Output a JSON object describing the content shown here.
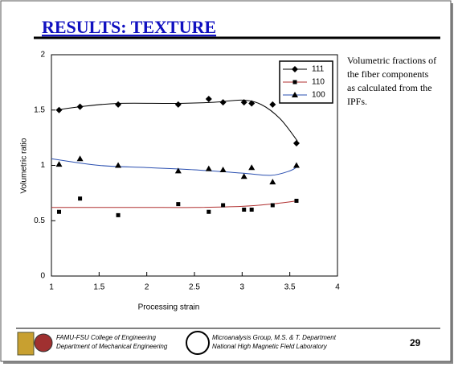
{
  "slide": {
    "title": "RESULTS: TEXTURE",
    "note": [
      "Volumetric fractions of",
      "the fiber components",
      "as calculated from the",
      "IPFs."
    ],
    "footer_left": [
      "FAMU-FSU College of Engineering",
      "Department of Mechanical Engineering"
    ],
    "footer_mid": [
      "Microanalysis Group, M.S. & T. Department",
      "National High Magnetic Field Laboratory"
    ],
    "page": "29"
  },
  "chart_data": {
    "type": "scatter",
    "x_label": "Processing strain",
    "y_label": "Volumetric ratio",
    "xlim": [
      1,
      4
    ],
    "xticks": [
      1,
      1.5,
      2,
      2.5,
      3,
      3.5,
      4
    ],
    "ylim": [
      0,
      2
    ],
    "yticks": [
      0,
      0.5,
      1,
      1.5,
      2
    ],
    "legend": "top-right",
    "series": [
      {
        "name": "111",
        "color": "#000000",
        "marker": "diamond",
        "x": [
          1.08,
          1.3,
          1.7,
          2.33,
          2.65,
          2.8,
          3.02,
          3.1,
          3.32,
          3.57
        ],
        "values": [
          1.5,
          1.53,
          1.55,
          1.55,
          1.6,
          1.57,
          1.57,
          1.56,
          1.55,
          1.2
        ],
        "fit": {
          "x": [
            1.05,
            1.3,
            1.7,
            2.3,
            2.7,
            3.0,
            3.2,
            3.4,
            3.58
          ],
          "values": [
            1.5,
            1.53,
            1.56,
            1.56,
            1.57,
            1.59,
            1.55,
            1.42,
            1.22
          ]
        }
      },
      {
        "name": "110",
        "color": "#b03030",
        "marker": "square",
        "x": [
          1.08,
          1.3,
          1.7,
          2.33,
          2.65,
          2.8,
          3.02,
          3.1,
          3.32,
          3.57
        ],
        "values": [
          0.58,
          0.7,
          0.55,
          0.65,
          0.58,
          0.64,
          0.6,
          0.6,
          0.64,
          0.68
        ],
        "fit": {
          "x": [
            1.0,
            1.5,
            2.0,
            2.5,
            3.0,
            3.3,
            3.58
          ],
          "values": [
            0.62,
            0.62,
            0.62,
            0.62,
            0.63,
            0.65,
            0.68
          ]
        }
      },
      {
        "name": "100",
        "color": "#2a4fb0",
        "marker": "triangle",
        "x": [
          1.08,
          1.3,
          1.7,
          2.33,
          2.65,
          2.8,
          3.02,
          3.1,
          3.32,
          3.57
        ],
        "values": [
          1.01,
          1.06,
          1.0,
          0.95,
          0.97,
          0.96,
          0.9,
          0.98,
          0.85,
          1.0
        ],
        "fit": {
          "x": [
            1.0,
            1.5,
            2.0,
            2.5,
            3.0,
            3.3,
            3.5,
            3.58
          ],
          "values": [
            1.06,
            1.0,
            0.98,
            0.96,
            0.93,
            0.91,
            0.95,
            0.99
          ]
        }
      }
    ]
  }
}
